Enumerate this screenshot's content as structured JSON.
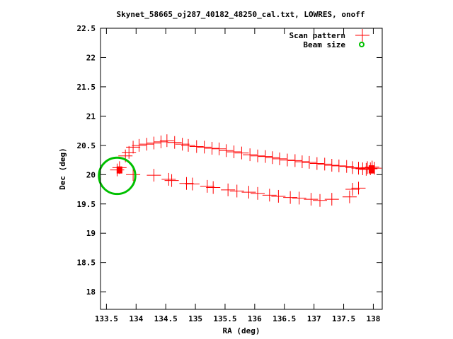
{
  "chart_data": {
    "type": "scatter",
    "title": "Skynet_58665_oj287_40182_48250_cal.txt, LOWRES, onoff",
    "xlabel": "RA (deg)",
    "ylabel": "Dec (deg)",
    "xlim": [
      133.4,
      138.15
    ],
    "ylim": [
      17.7,
      22.5
    ],
    "xticks": [
      133.5,
      134,
      134.5,
      135,
      135.5,
      136,
      136.5,
      137,
      137.5,
      138
    ],
    "xtick_labels": [
      "133.5",
      "134",
      "134.5",
      "135",
      "135.5",
      "136",
      "136.5",
      "137",
      "137.5",
      "138"
    ],
    "yticks": [
      18,
      18.5,
      19,
      19.5,
      20,
      20.5,
      21,
      21.5,
      22,
      22.5
    ],
    "ytick_labels": [
      "18",
      "18.5",
      "19",
      "19.5",
      "20",
      "20.5",
      "21",
      "21.5",
      "22",
      "22.5"
    ],
    "grid": false,
    "legend_position": "top-right",
    "series": [
      {
        "name": "Scan pattern",
        "color": "#ff0000",
        "marker": "plus",
        "points": [
          [
            133.68,
            20.08
          ],
          [
            133.72,
            20.12
          ],
          [
            133.82,
            20.32
          ],
          [
            133.88,
            20.38
          ],
          [
            133.95,
            20.47
          ],
          [
            134.05,
            20.5
          ],
          [
            134.18,
            20.52
          ],
          [
            134.3,
            20.54
          ],
          [
            134.42,
            20.56
          ],
          [
            134.52,
            20.58
          ],
          [
            134.65,
            20.55
          ],
          [
            134.78,
            20.52
          ],
          [
            134.88,
            20.5
          ],
          [
            135.02,
            20.48
          ],
          [
            135.15,
            20.47
          ],
          [
            135.28,
            20.45
          ],
          [
            135.4,
            20.44
          ],
          [
            135.52,
            20.41
          ],
          [
            135.65,
            20.39
          ],
          [
            135.78,
            20.37
          ],
          [
            135.92,
            20.34
          ],
          [
            136.05,
            20.32
          ],
          [
            136.18,
            20.31
          ],
          [
            136.3,
            20.29
          ],
          [
            136.42,
            20.27
          ],
          [
            136.55,
            20.25
          ],
          [
            136.68,
            20.24
          ],
          [
            136.8,
            20.22
          ],
          [
            136.92,
            20.21
          ],
          [
            137.05,
            20.19
          ],
          [
            137.18,
            20.18
          ],
          [
            137.3,
            20.16
          ],
          [
            137.42,
            20.15
          ],
          [
            137.55,
            20.14
          ],
          [
            137.65,
            20.12
          ],
          [
            137.75,
            20.11
          ],
          [
            137.82,
            20.1
          ],
          [
            137.88,
            20.09
          ],
          [
            137.95,
            20.1
          ],
          [
            138.02,
            20.11
          ],
          [
            137.98,
            20.13
          ],
          [
            137.9,
            20.12
          ],
          [
            133.95,
            20.0
          ],
          [
            134.3,
            19.99
          ],
          [
            134.55,
            19.92
          ],
          [
            134.85,
            19.85
          ],
          [
            135.2,
            19.8
          ],
          [
            135.55,
            19.74
          ],
          [
            135.9,
            19.7
          ],
          [
            136.25,
            19.65
          ],
          [
            136.6,
            19.61
          ],
          [
            136.95,
            19.58
          ],
          [
            137.3,
            19.58
          ],
          [
            137.6,
            19.62
          ],
          [
            137.75,
            19.77
          ],
          [
            137.65,
            19.75
          ],
          [
            137.1,
            19.56
          ],
          [
            136.75,
            19.6
          ],
          [
            136.4,
            19.63
          ],
          [
            136.05,
            19.68
          ],
          [
            135.7,
            19.72
          ],
          [
            135.3,
            19.78
          ],
          [
            134.95,
            19.84
          ],
          [
            134.6,
            19.9
          ]
        ]
      },
      {
        "name": "Beam size",
        "color": "#00c000",
        "marker": "circle",
        "center": [
          133.68,
          19.98
        ],
        "radius": 0.31
      }
    ],
    "highlights": [
      {
        "x": 133.72,
        "y": 20.08,
        "dy": 0.12
      },
      {
        "x": 137.97,
        "y": 20.09,
        "dy": 0.14
      }
    ]
  }
}
